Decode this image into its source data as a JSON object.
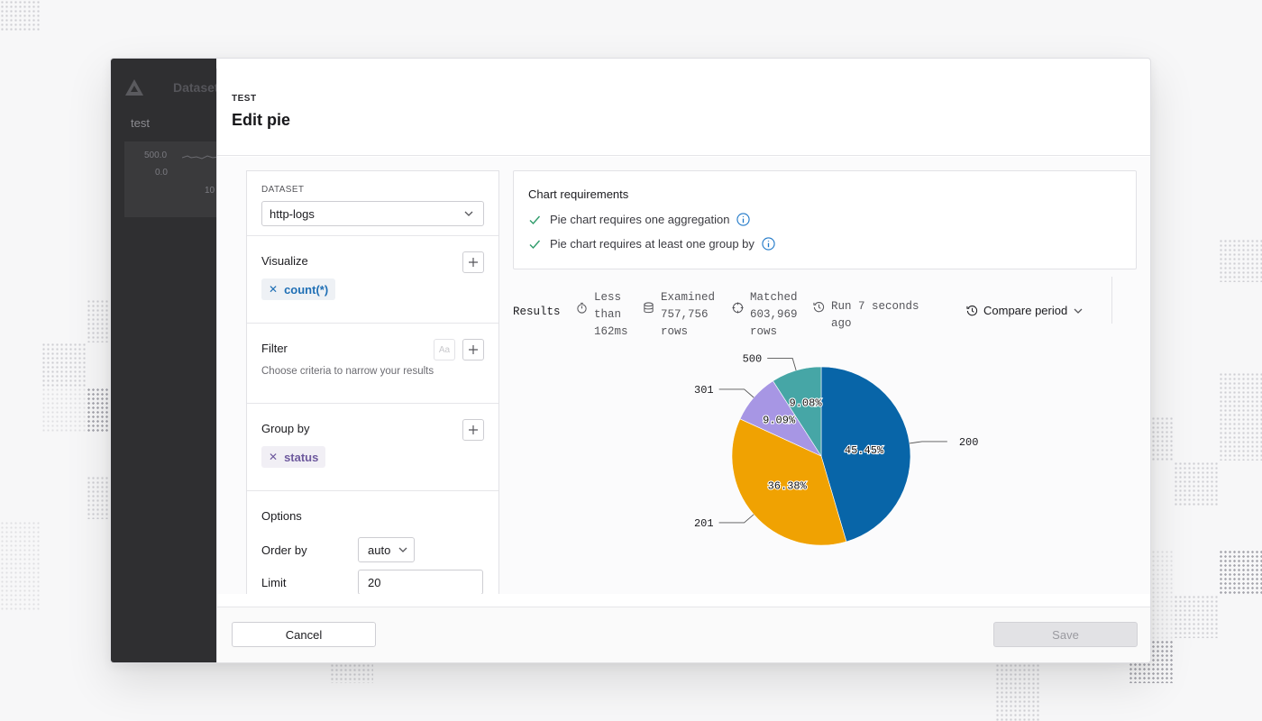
{
  "app": {
    "title": "Dataset",
    "tab": "test",
    "axis_top": "500.0",
    "axis_zero": "0.0",
    "axis_x": "10"
  },
  "modal": {
    "eyebrow": "TEST",
    "title": "Edit pie",
    "cancel_label": "Cancel",
    "save_label": "Save"
  },
  "config": {
    "dataset": {
      "label": "DATASET",
      "value": "http-logs"
    },
    "visualize": {
      "label": "Visualize",
      "chips": [
        "count(*)"
      ]
    },
    "filter": {
      "label": "Filter",
      "hint": "Choose criteria to narrow your results",
      "aa": "Aa"
    },
    "group_by": {
      "label": "Group by",
      "chips": [
        "status"
      ]
    },
    "options": {
      "label": "Options",
      "order_by": {
        "label": "Order by",
        "value": "auto"
      },
      "limit": {
        "label": "Limit",
        "value": "20"
      }
    }
  },
  "requirements": {
    "title": "Chart requirements",
    "items": [
      "Pie chart requires one aggregation",
      "Pie chart requires at least one group by"
    ]
  },
  "results": {
    "label": "Results",
    "duration": [
      "Less",
      "than",
      "162ms"
    ],
    "examined": [
      "Examined",
      "757,756",
      "rows"
    ],
    "matched": [
      "Matched",
      "603,969",
      "rows"
    ],
    "run": [
      "Run 7 seconds",
      "ago"
    ],
    "compare": "Compare period"
  },
  "colors": {
    "blue": "#0865a8",
    "orange": "#f0a202",
    "purple": "#a796e4",
    "teal": "#46a6a6",
    "check_green": "#2e9b6a",
    "info_blue": "#1f78c8"
  },
  "chart_data": {
    "type": "pie",
    "categories": [
      "200",
      "201",
      "301",
      "500"
    ],
    "values": [
      45.45,
      36.38,
      9.09,
      9.08
    ],
    "labels": [
      "45.45%",
      "36.38%",
      "9.09%",
      "9.08%"
    ],
    "colors": [
      "#0865a8",
      "#f0a202",
      "#a796e4",
      "#46a6a6"
    ]
  }
}
